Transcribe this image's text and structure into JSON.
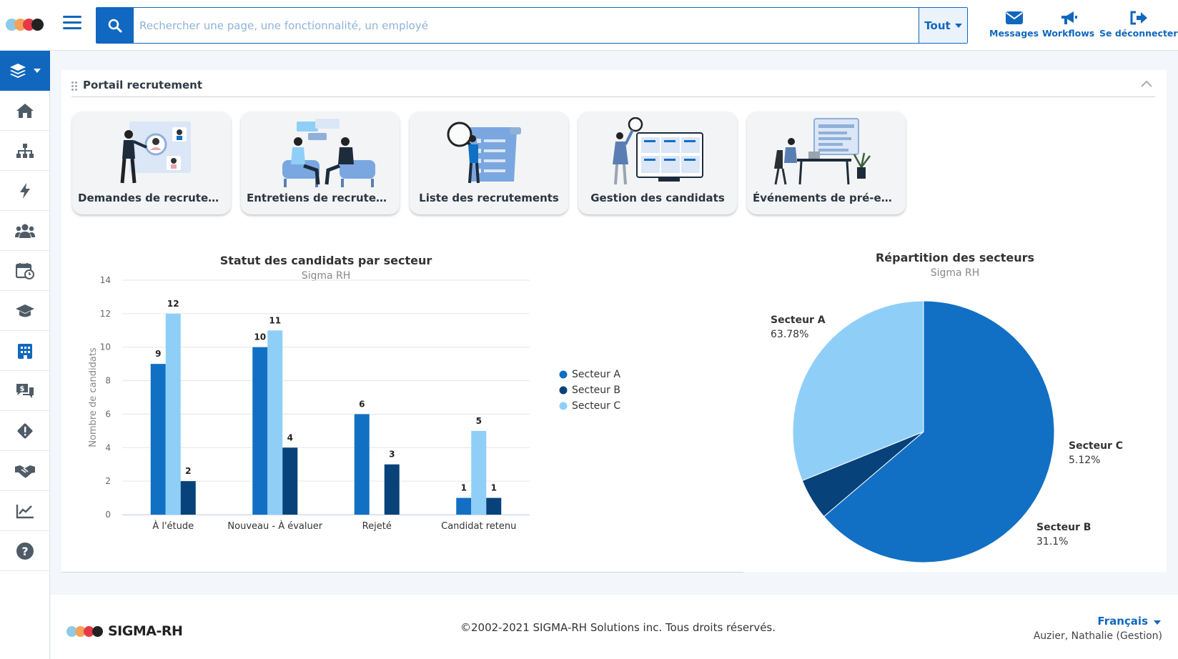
{
  "brand": {
    "logo_colors": [
      "#8ecae6",
      "#f4a259",
      "#e63946",
      "#222222"
    ],
    "wordmark": "SIGMA-RH"
  },
  "search": {
    "placeholder": "Rechercher une page, une fonctionnalité, un employé",
    "scope": "Tout"
  },
  "top_actions": [
    {
      "label": "Messages",
      "icon": "envelope-icon"
    },
    {
      "label": "Workflows",
      "icon": "megaphone-icon"
    },
    {
      "label": "Se déconnecter",
      "icon": "sign-out-icon"
    }
  ],
  "sidebar": {
    "items": [
      {
        "icon": "layers-icon"
      },
      {
        "icon": "home-icon"
      },
      {
        "icon": "org-chart-icon"
      },
      {
        "icon": "lightning-icon"
      },
      {
        "icon": "users-icon"
      },
      {
        "icon": "calendar-clock-icon"
      },
      {
        "icon": "graduation-cap-icon"
      },
      {
        "icon": "building-icon"
      },
      {
        "icon": "salary-chat-icon"
      },
      {
        "icon": "warning-icon"
      },
      {
        "icon": "handshake-icon"
      },
      {
        "icon": "line-chart-icon"
      },
      {
        "icon": "help-icon"
      }
    ]
  },
  "panel": {
    "title": "Portail recrutement"
  },
  "cards": [
    {
      "label": "Demandes de recrutement"
    },
    {
      "label": "Entretiens de recrutement"
    },
    {
      "label": "Liste des recrutements"
    },
    {
      "label": "Gestion des candidats"
    },
    {
      "label": "Événements de pré-embauche"
    }
  ],
  "chart_data": [
    {
      "type": "bar",
      "title": "Statut des candidats par secteur",
      "subtitle": "Sigma RH",
      "xlabel": "",
      "ylabel": "Nombre de candidats",
      "ylim": [
        0,
        14
      ],
      "yticks": [
        0,
        2,
        4,
        6,
        8,
        10,
        12,
        14
      ],
      "grid": true,
      "legend_position": "right",
      "categories": [
        "À l'étude",
        "Nouveau - À évaluer",
        "Rejeté",
        "Candidat retenu"
      ],
      "series": [
        {
          "name": "Secteur A",
          "color": "#1170c4",
          "values": [
            9,
            10,
            6,
            1
          ]
        },
        {
          "name": "Secteur B",
          "color": "#07427a",
          "values": [
            2,
            4,
            3,
            1
          ]
        },
        {
          "name": "Secteur C",
          "color": "#8fcff7",
          "values": [
            12,
            11,
            null,
            5
          ]
        }
      ],
      "bar_order": [
        "Secteur A",
        "Secteur C",
        "Secteur B"
      ]
    },
    {
      "type": "pie",
      "title": "Répartition des secteurs",
      "subtitle": "Sigma RH",
      "slices": [
        {
          "name": "Secteur A",
          "value": 63.78,
          "label": "63.78%",
          "color": "#1170c4"
        },
        {
          "name": "Secteur C",
          "value": 5.12,
          "label": "5.12%",
          "color": "#07427a"
        },
        {
          "name": "Secteur B",
          "value": 31.1,
          "label": "31.1%",
          "color": "#8fcff7"
        }
      ]
    }
  ],
  "footer": {
    "copyright": "©2002-2021 SIGMA-RH Solutions inc. Tous droits réservés.",
    "language": "Français",
    "user": "Auzier, Nathalie (Gestion)"
  }
}
